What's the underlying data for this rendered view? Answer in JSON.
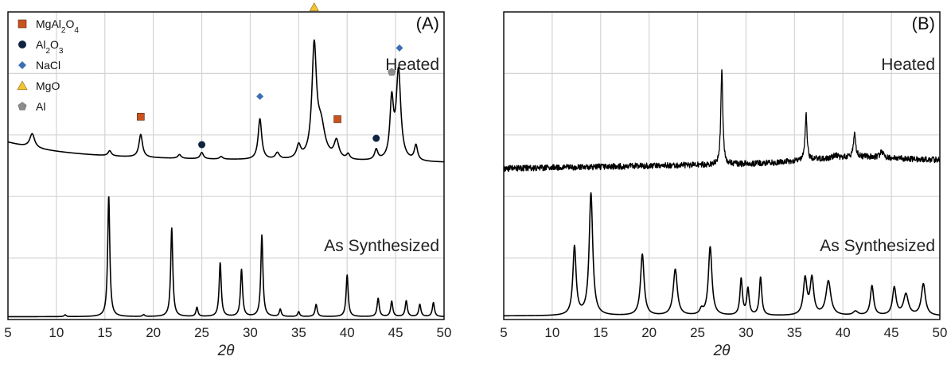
{
  "chart_data": [
    {
      "type": "line",
      "panel_label": "(A)",
      "xlabel": "2θ",
      "xlim": [
        5,
        50
      ],
      "xticks": [
        5,
        10,
        15,
        20,
        25,
        30,
        35,
        40,
        45,
        50
      ],
      "grid": true,
      "legend": {
        "placement": "top-left",
        "entries": [
          {
            "name": "MgAl₂O₄",
            "marker": "square",
            "color": "#C8531E"
          },
          {
            "name": "Al₂O₃",
            "marker": "circle",
            "color": "#0F2440"
          },
          {
            "name": "NaCl",
            "marker": "diamond",
            "color": "#3C6EB4"
          },
          {
            "name": "MgO",
            "marker": "triangle",
            "color": "#F2C230"
          },
          {
            "name": "Al",
            "marker": "pentagon",
            "color": "#8C8C8C"
          }
        ]
      },
      "series": [
        {
          "name": "Heated",
          "baseline": 0.2,
          "peaks": [
            {
              "x": 7.5,
              "h": 0.11,
              "w": 0.3
            },
            {
              "x": 15.5,
              "h": 0.04,
              "w": 0.2
            },
            {
              "x": 18.7,
              "h": 0.18,
              "w": 0.22
            },
            {
              "x": 22.7,
              "h": 0.03,
              "w": 0.2
            },
            {
              "x": 25.0,
              "h": 0.05,
              "w": 0.2
            },
            {
              "x": 27.0,
              "h": 0.02,
              "w": 0.2
            },
            {
              "x": 31.0,
              "h": 0.32,
              "w": 0.22
            },
            {
              "x": 32.8,
              "h": 0.05,
              "w": 0.25
            },
            {
              "x": 35.0,
              "h": 0.1,
              "w": 0.25
            },
            {
              "x": 36.6,
              "h": 0.86,
              "w": 0.28
            },
            {
              "x": 37.3,
              "h": 0.25,
              "w": 0.5
            },
            {
              "x": 38.9,
              "h": 0.14,
              "w": 0.3
            },
            {
              "x": 40.1,
              "h": 0.04,
              "w": 0.2
            },
            {
              "x": 43.0,
              "h": 0.08,
              "w": 0.2
            },
            {
              "x": 44.6,
              "h": 0.45,
              "w": 0.22
            },
            {
              "x": 45.3,
              "h": 0.7,
              "w": 0.28
            },
            {
              "x": 47.1,
              "h": 0.12,
              "w": 0.2
            }
          ],
          "markers": [
            {
              "x": 18.7,
              "y": 0.52,
              "phase": "MgAl₂O₄"
            },
            {
              "x": 25.0,
              "y": 0.3,
              "phase": "Al₂O₃"
            },
            {
              "x": 31.0,
              "y": 0.68,
              "phase": "NaCl"
            },
            {
              "x": 36.6,
              "y": 1.38,
              "phase": "MgO"
            },
            {
              "x": 39.0,
              "y": 0.5,
              "phase": "MgAl₂O₄"
            },
            {
              "x": 43.0,
              "y": 0.35,
              "phase": "Al₂O₃"
            },
            {
              "x": 44.6,
              "y": 0.87,
              "phase": "Al"
            },
            {
              "x": 45.4,
              "y": 1.06,
              "phase": "NaCl"
            }
          ]
        },
        {
          "name": "As Synthesized",
          "baseline": 0.02,
          "peaks": [
            {
              "x": 10.9,
              "h": 0.03,
              "w": 0.12
            },
            {
              "x": 15.4,
              "h": 1.98,
              "w": 0.13
            },
            {
              "x": 19.0,
              "h": 0.03,
              "w": 0.12
            },
            {
              "x": 21.9,
              "h": 1.45,
              "w": 0.13
            },
            {
              "x": 24.5,
              "h": 0.15,
              "w": 0.12
            },
            {
              "x": 26.9,
              "h": 0.88,
              "w": 0.13
            },
            {
              "x": 29.1,
              "h": 0.77,
              "w": 0.13
            },
            {
              "x": 31.2,
              "h": 1.33,
              "w": 0.13
            },
            {
              "x": 33.1,
              "h": 0.12,
              "w": 0.12
            },
            {
              "x": 35.0,
              "h": 0.08,
              "w": 0.12
            },
            {
              "x": 36.8,
              "h": 0.2,
              "w": 0.13
            },
            {
              "x": 40.0,
              "h": 0.68,
              "w": 0.13
            },
            {
              "x": 43.2,
              "h": 0.3,
              "w": 0.13
            },
            {
              "x": 44.6,
              "h": 0.25,
              "w": 0.13
            },
            {
              "x": 46.1,
              "h": 0.26,
              "w": 0.13
            },
            {
              "x": 47.5,
              "h": 0.2,
              "w": 0.13
            },
            {
              "x": 48.9,
              "h": 0.23,
              "w": 0.13
            }
          ]
        }
      ]
    },
    {
      "type": "line",
      "panel_label": "(B)",
      "xlabel": "2θ",
      "xlim": [
        5,
        50
      ],
      "xticks": [
        5,
        10,
        15,
        20,
        25,
        30,
        35,
        40,
        45,
        50
      ],
      "grid": true,
      "series": [
        {
          "name": "Heated",
          "noisy": true,
          "baseline_start": 0.0,
          "baseline_end": 0.12,
          "baseline_bump": {
            "x": 41.0,
            "h": 0.08,
            "w": 6
          },
          "noise": 0.045,
          "peaks": [
            {
              "x": 27.5,
              "h": 1.42,
              "w": 0.12
            },
            {
              "x": 36.2,
              "h": 0.7,
              "w": 0.12
            },
            {
              "x": 39.2,
              "h": 0.05,
              "w": 0.15
            },
            {
              "x": 41.2,
              "h": 0.35,
              "w": 0.13
            },
            {
              "x": 44.0,
              "h": 0.08,
              "w": 0.2
            }
          ]
        },
        {
          "name": "As Synthesized",
          "baseline": 0.03,
          "peaks": [
            {
              "x": 12.3,
              "h": 1.04,
              "w": 0.2
            },
            {
              "x": 14.0,
              "h": 1.85,
              "w": 0.22
            },
            {
              "x": 19.3,
              "h": 0.93,
              "w": 0.22
            },
            {
              "x": 22.7,
              "h": 0.7,
              "w": 0.25
            },
            {
              "x": 25.4,
              "h": 0.08,
              "w": 0.2
            },
            {
              "x": 26.3,
              "h": 1.04,
              "w": 0.22
            },
            {
              "x": 29.5,
              "h": 0.55,
              "w": 0.15
            },
            {
              "x": 30.2,
              "h": 0.4,
              "w": 0.15
            },
            {
              "x": 31.5,
              "h": 0.58,
              "w": 0.15
            },
            {
              "x": 36.1,
              "h": 0.55,
              "w": 0.22
            },
            {
              "x": 36.8,
              "h": 0.55,
              "w": 0.22
            },
            {
              "x": 38.5,
              "h": 0.52,
              "w": 0.3
            },
            {
              "x": 41.3,
              "h": 0.06,
              "w": 0.3
            },
            {
              "x": 43.0,
              "h": 0.45,
              "w": 0.2
            },
            {
              "x": 45.3,
              "h": 0.42,
              "w": 0.22
            },
            {
              "x": 46.5,
              "h": 0.32,
              "w": 0.3
            },
            {
              "x": 48.3,
              "h": 0.48,
              "w": 0.25
            }
          ]
        }
      ]
    }
  ]
}
